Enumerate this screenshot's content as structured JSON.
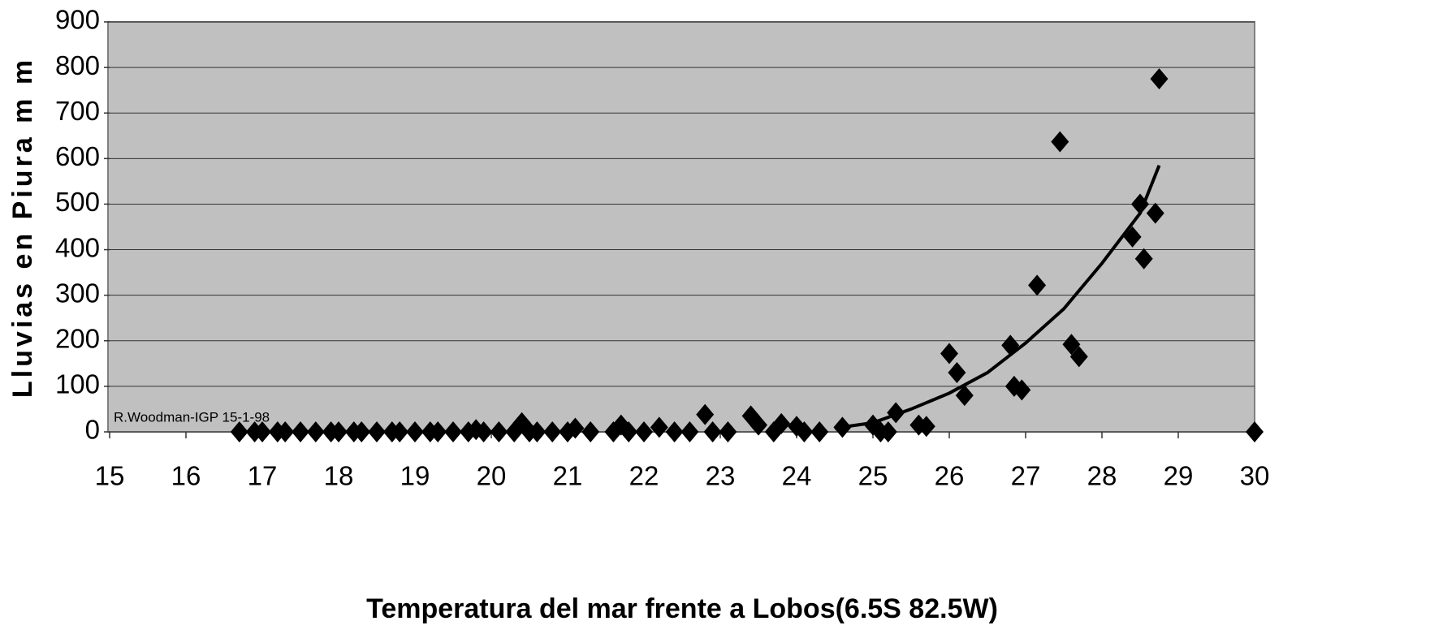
{
  "chart_data": {
    "type": "scatter",
    "x_label": "Temperatura del mar  frente a Lobos(6.5S 82.5W)",
    "y_label": "Lluvias en Piura m m",
    "annotation": "R.Woodman-IGP 15-1-98",
    "xlim": [
      15,
      30
    ],
    "xticks": [
      15,
      16,
      17,
      18,
      19,
      20,
      21,
      22,
      23,
      24,
      25,
      26,
      27,
      28,
      29,
      30
    ],
    "ylim": [
      0,
      900
    ],
    "yticks": [
      0,
      100,
      200,
      300,
      400,
      500,
      600,
      700,
      800,
      900
    ],
    "grid": true,
    "plot_background": "#c0c0c0",
    "series": [
      {
        "color": "#000000",
        "x": [
          16.7,
          16.9,
          17.0,
          17.2,
          17.3,
          17.5,
          17.7,
          17.9,
          18.0,
          18.2,
          18.3,
          18.5,
          18.7,
          18.8,
          19.0,
          19.2,
          19.3,
          19.5,
          19.7,
          19.8,
          19.9,
          20.1,
          20.3,
          20.4,
          20.5,
          20.6,
          20.8,
          21.0,
          21.1,
          21.3,
          21.6,
          21.7,
          21.8,
          22.0,
          22.2,
          22.4,
          22.6,
          22.8,
          22.9,
          23.1,
          23.4,
          23.5,
          23.7,
          23.8,
          24.0,
          24.1,
          24.3,
          24.6,
          25.0,
          25.1,
          25.2,
          25.3,
          25.6,
          25.7,
          26.0,
          26.1,
          26.2,
          26.8,
          26.85,
          26.95,
          27.15,
          27.45,
          27.6,
          27.7,
          28.4,
          28.5,
          28.55,
          28.7,
          28.75,
          30.0
        ],
        "values": [
          0,
          0,
          0,
          0,
          0,
          0,
          0,
          0,
          0,
          0,
          0,
          0,
          0,
          0,
          0,
          0,
          0,
          0,
          0,
          5,
          0,
          0,
          0,
          20,
          0,
          0,
          0,
          0,
          8,
          0,
          0,
          15,
          0,
          0,
          10,
          0,
          0,
          38,
          0,
          0,
          35,
          15,
          0,
          18,
          12,
          0,
          0,
          10,
          15,
          0,
          0,
          42,
          15,
          12,
          172,
          130,
          80,
          190,
          100,
          92,
          322,
          637,
          192,
          165,
          428,
          500,
          380,
          480,
          775,
          0
        ]
      }
    ],
    "trendline": {
      "color": "#000000",
      "x": [
        24.5,
        25,
        25.5,
        26,
        26.5,
        27,
        27.5,
        28,
        28.5,
        28.75
      ],
      "values": [
        8,
        20,
        50,
        85,
        130,
        195,
        270,
        370,
        480,
        585
      ]
    }
  }
}
